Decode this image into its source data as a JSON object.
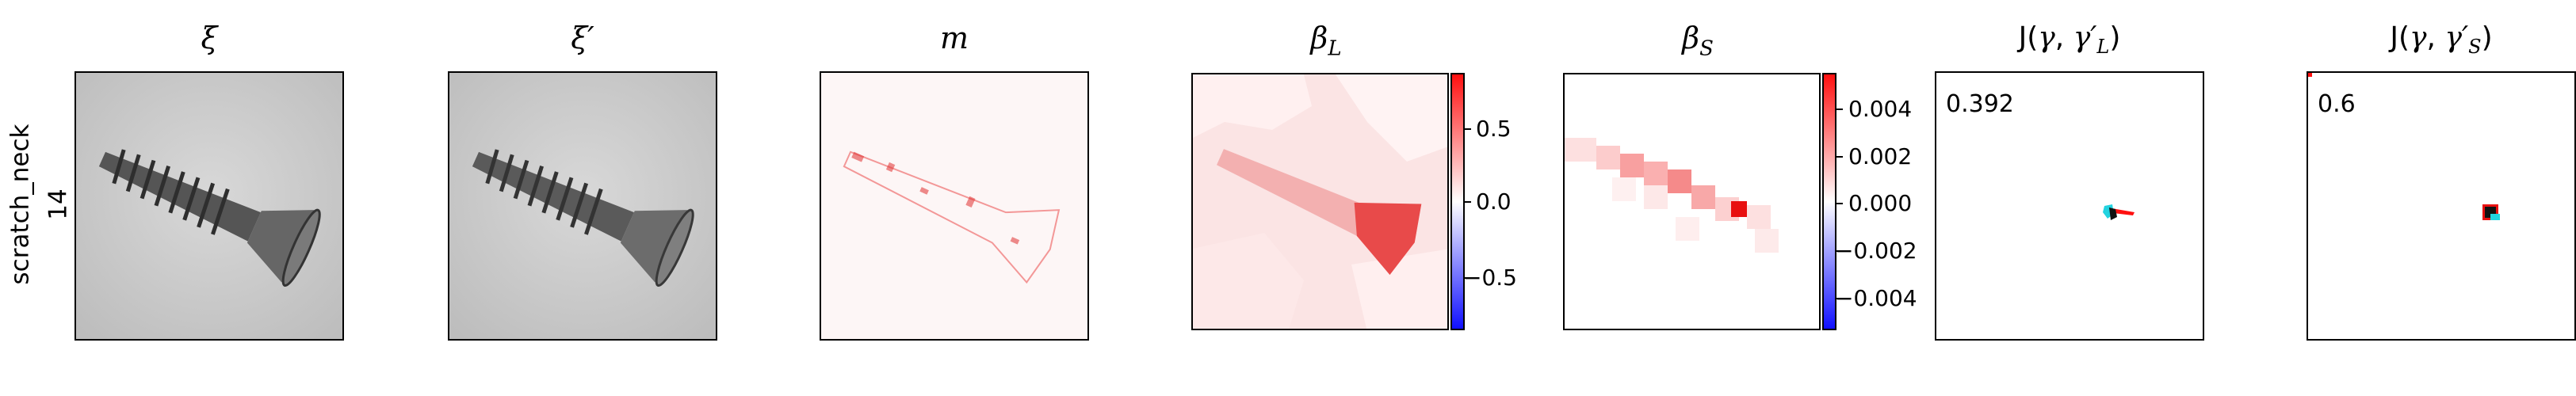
{
  "row_label": {
    "line1": "scratch_neck",
    "line2": "14"
  },
  "panels": [
    {
      "title": "ξ"
    },
    {
      "title": "ξ′"
    },
    {
      "title": "m"
    },
    {
      "title": "β",
      "sub": "L"
    },
    {
      "title": "β",
      "sub": "S"
    },
    {
      "title": "J(γ, γ′",
      "sub": "L",
      "close": ")"
    },
    {
      "title": "J(γ, γ′",
      "sub": "S",
      "close": ")"
    }
  ],
  "colorbar_L": {
    "ticks": [
      "0.5",
      "0.0",
      "−0.5"
    ],
    "range": [
      -0.85,
      0.85
    ]
  },
  "colorbar_S": {
    "ticks": [
      "0.004",
      "0.002",
      "0.000",
      "−0.002",
      "−0.004"
    ],
    "range": [
      -0.0055,
      0.0055
    ]
  },
  "scores": {
    "L": "0.392",
    "S": "0.6"
  },
  "colors": {
    "positive": "#ff1010",
    "negative": "#1010ff",
    "cyan": "#22d3e0"
  }
}
